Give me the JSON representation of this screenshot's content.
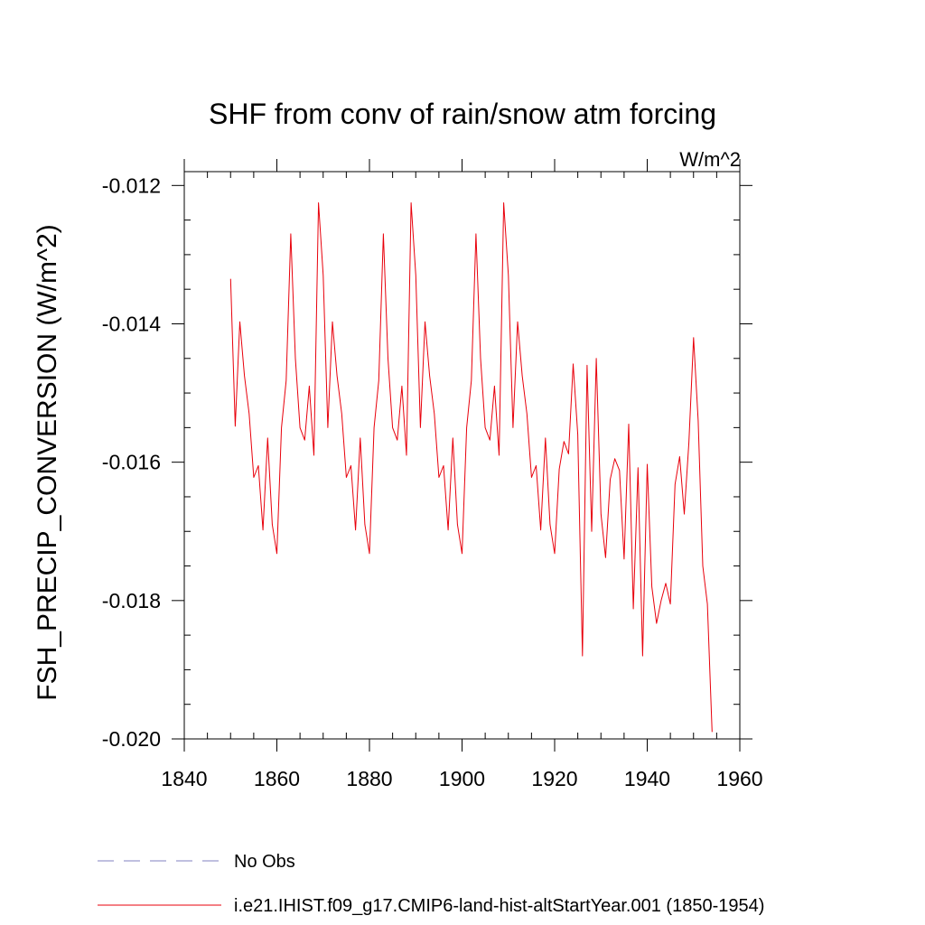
{
  "chart_data": {
    "type": "line",
    "title": "SHF from conv of rain/snow atm forcing",
    "units_label": "W/m^2",
    "ylabel": "FSH_PRECIP_CONVERSION  (W/m^2)",
    "xlabel": "",
    "xlim": [
      1840,
      1960
    ],
    "ylim": [
      -0.02,
      -0.0118
    ],
    "x_ticks": [
      1840,
      1860,
      1880,
      1900,
      1920,
      1940,
      1960
    ],
    "x_tick_labels": [
      "1840",
      "1860",
      "1880",
      "1900",
      "1920",
      "1940",
      "1960"
    ],
    "x_minor_step": 5,
    "y_ticks": [
      -0.012,
      -0.014,
      -0.016,
      -0.018,
      -0.02
    ],
    "y_tick_labels": [
      "-0.012",
      "-0.014",
      "-0.016",
      "-0.018",
      "-0.020"
    ],
    "y_minor_step": 0.0005,
    "grid": false,
    "legend_position": "bottom-left",
    "legend": [
      {
        "name": "No Obs",
        "color": "#8080c0",
        "dash": "dashed"
      },
      {
        "name": "i.e21.IHIST.f09_g17.CMIP6-land-hist-altStartYear.001 (1850-1954)",
        "color": "#e8000b",
        "dash": "solid"
      }
    ],
    "series": [
      {
        "name": "i.e21.IHIST.f09_g17.CMIP6-land-hist-altStartYear.001 (1850-1954)",
        "color": "#e8000b",
        "x": [
          1850,
          1851,
          1852,
          1853,
          1854,
          1855,
          1856,
          1857,
          1858,
          1859,
          1860,
          1861,
          1862,
          1863,
          1864,
          1865,
          1866,
          1867,
          1868,
          1869,
          1870,
          1871,
          1872,
          1873,
          1874,
          1875,
          1876,
          1877,
          1878,
          1879,
          1880,
          1881,
          1882,
          1883,
          1884,
          1885,
          1886,
          1887,
          1888,
          1889,
          1890,
          1891,
          1892,
          1893,
          1894,
          1895,
          1896,
          1897,
          1898,
          1899,
          1900,
          1901,
          1902,
          1903,
          1904,
          1905,
          1906,
          1907,
          1908,
          1909,
          1910,
          1911,
          1912,
          1913,
          1914,
          1915,
          1916,
          1917,
          1918,
          1919,
          1920,
          1921,
          1922,
          1923,
          1924,
          1925,
          1926,
          1927,
          1928,
          1929,
          1930,
          1931,
          1932,
          1933,
          1934,
          1935,
          1936,
          1937,
          1938,
          1939,
          1940,
          1941,
          1942,
          1943,
          1944,
          1945,
          1946,
          1947,
          1948,
          1949,
          1950,
          1951,
          1952,
          1953,
          1954
        ],
        "values": [
          -0.01335,
          -0.01548,
          -0.01397,
          -0.01475,
          -0.0153,
          -0.01622,
          -0.01605,
          -0.01698,
          -0.01565,
          -0.0169,
          -0.01732,
          -0.0155,
          -0.01482,
          -0.0127,
          -0.0145,
          -0.0155,
          -0.01568,
          -0.0149,
          -0.0159,
          -0.01225,
          -0.0133,
          -0.0155,
          -0.01397,
          -0.01475,
          -0.0153,
          -0.01622,
          -0.01605,
          -0.01698,
          -0.01565,
          -0.0169,
          -0.01732,
          -0.0155,
          -0.01482,
          -0.0127,
          -0.0145,
          -0.0155,
          -0.01568,
          -0.0149,
          -0.0159,
          -0.01225,
          -0.0133,
          -0.0155,
          -0.01397,
          -0.01475,
          -0.0153,
          -0.01622,
          -0.01605,
          -0.01698,
          -0.01565,
          -0.0169,
          -0.01732,
          -0.0155,
          -0.01482,
          -0.0127,
          -0.0145,
          -0.0155,
          -0.01568,
          -0.0149,
          -0.0159,
          -0.01225,
          -0.0133,
          -0.0155,
          -0.01397,
          -0.01475,
          -0.0153,
          -0.01622,
          -0.01605,
          -0.01698,
          -0.01565,
          -0.0169,
          -0.01732,
          -0.0161,
          -0.0157,
          -0.01588,
          -0.01458,
          -0.0156,
          -0.0188,
          -0.0146,
          -0.017,
          -0.0145,
          -0.01675,
          -0.01738,
          -0.01625,
          -0.01595,
          -0.01612,
          -0.0174,
          -0.01545,
          -0.01812,
          -0.01608,
          -0.0188,
          -0.01603,
          -0.0178,
          -0.01833,
          -0.018,
          -0.01775,
          -0.01805,
          -0.01632,
          -0.01592,
          -0.01675,
          -0.01572,
          -0.0142,
          -0.0154,
          -0.0175,
          -0.01805,
          -0.0199
        ]
      }
    ]
  }
}
